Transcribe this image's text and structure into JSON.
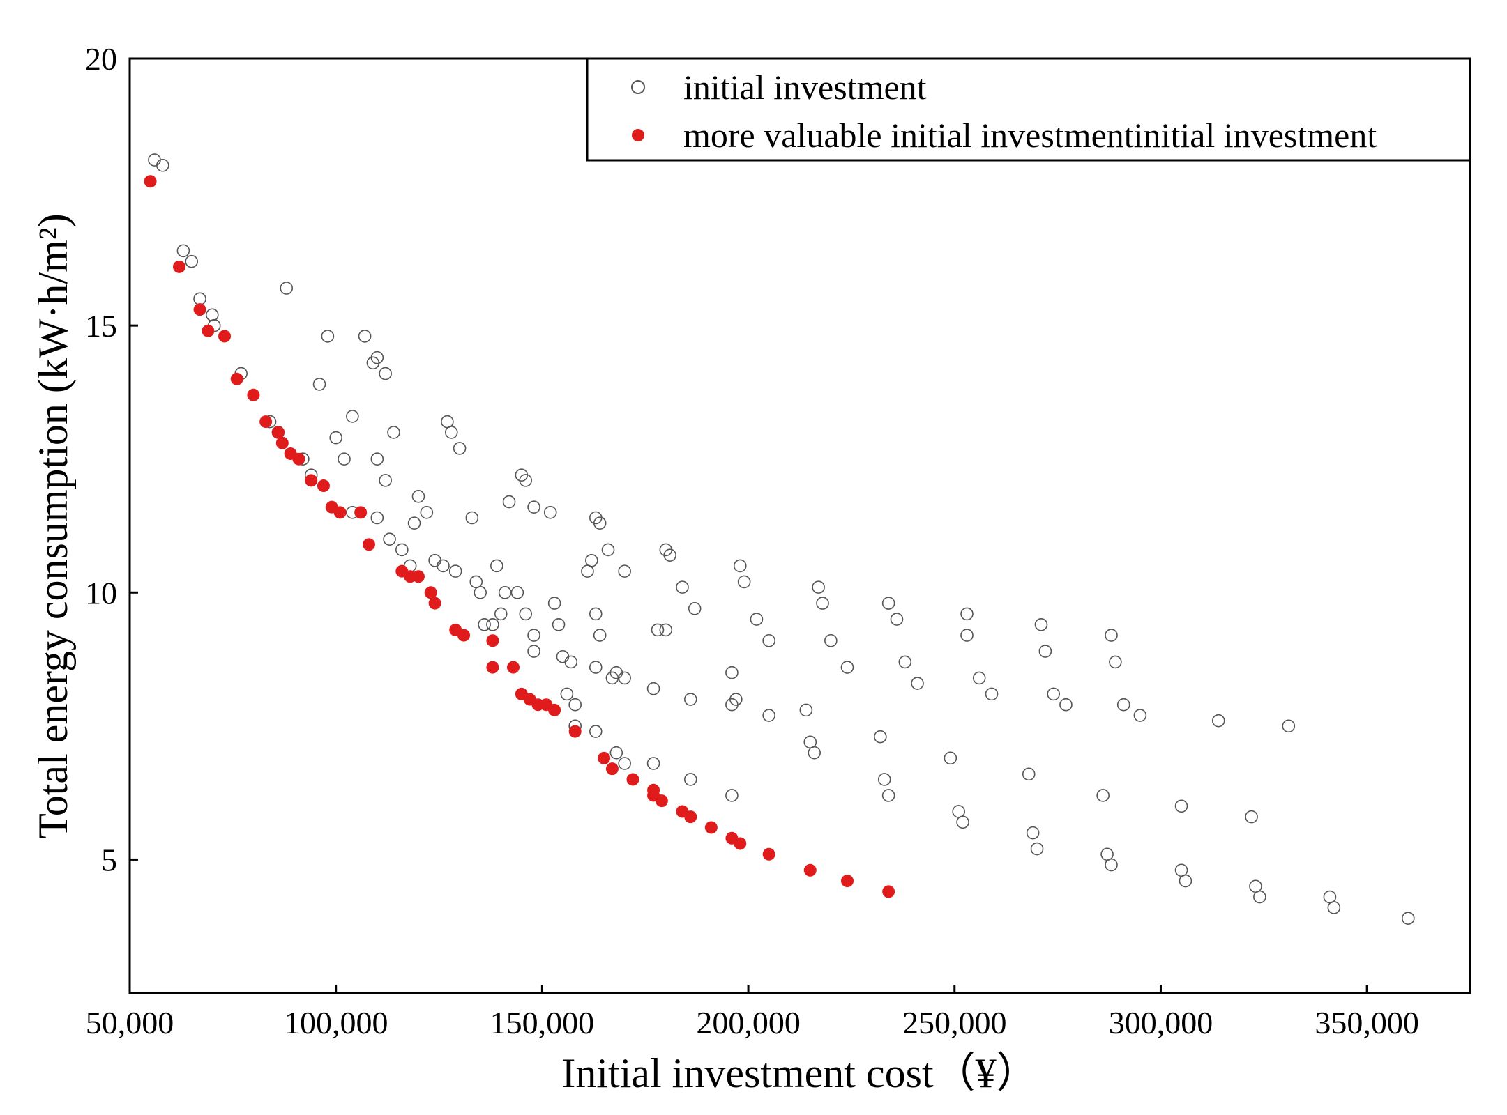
{
  "chart_data": {
    "type": "scatter",
    "title": "",
    "xlabel": "Initial investment cost（¥）",
    "ylabel": "Total energy consumption (kW·h/m²)",
    "xlim": [
      50000,
      375000
    ],
    "ylim": [
      2.5,
      20
    ],
    "x_ticks": [
      50000,
      100000,
      150000,
      200000,
      250000,
      300000,
      350000
    ],
    "x_tick_labels": [
      "50,000",
      "100,000",
      "150,000",
      "200,000",
      "250,000",
      "300,000",
      "350,000"
    ],
    "y_ticks": [
      5,
      10,
      15,
      20
    ],
    "y_tick_labels": [
      "5",
      "10",
      "15",
      "20"
    ],
    "legend_position": "top-right",
    "series": [
      {
        "name": "initial investment",
        "marker": "open-circle",
        "color": "#555555",
        "points": [
          [
            56000,
            18.1
          ],
          [
            58000,
            18.0
          ],
          [
            63000,
            16.4
          ],
          [
            65000,
            16.2
          ],
          [
            67000,
            15.5
          ],
          [
            70000,
            15.2
          ],
          [
            70500,
            15.0
          ],
          [
            77000,
            14.1
          ],
          [
            84000,
            13.2
          ],
          [
            86000,
            13.0
          ],
          [
            88000,
            15.7
          ],
          [
            92000,
            12.5
          ],
          [
            94000,
            12.2
          ],
          [
            96000,
            13.9
          ],
          [
            98000,
            14.8
          ],
          [
            100000,
            12.9
          ],
          [
            102000,
            12.5
          ],
          [
            104000,
            13.3
          ],
          [
            104000,
            11.5
          ],
          [
            107000,
            14.8
          ],
          [
            109000,
            14.3
          ],
          [
            110000,
            14.4
          ],
          [
            110000,
            12.5
          ],
          [
            112000,
            14.1
          ],
          [
            112000,
            12.1
          ],
          [
            110000,
            11.4
          ],
          [
            113000,
            11.0
          ],
          [
            114000,
            13.0
          ],
          [
            116000,
            10.8
          ],
          [
            118000,
            10.5
          ],
          [
            119000,
            11.3
          ],
          [
            120000,
            11.8
          ],
          [
            122000,
            11.5
          ],
          [
            124000,
            10.6
          ],
          [
            126000,
            10.5
          ],
          [
            127000,
            13.2
          ],
          [
            128000,
            13.0
          ],
          [
            129000,
            10.4
          ],
          [
            130000,
            12.7
          ],
          [
            133000,
            11.4
          ],
          [
            134000,
            10.2
          ],
          [
            135000,
            10.0
          ],
          [
            136000,
            9.4
          ],
          [
            138000,
            9.4
          ],
          [
            139000,
            10.5
          ],
          [
            140000,
            9.6
          ],
          [
            141000,
            10.0
          ],
          [
            142000,
            11.7
          ],
          [
            144000,
            10.0
          ],
          [
            145000,
            12.2
          ],
          [
            146000,
            12.1
          ],
          [
            146000,
            9.6
          ],
          [
            148000,
            11.6
          ],
          [
            148000,
            9.2
          ],
          [
            148000,
            8.9
          ],
          [
            152000,
            11.5
          ],
          [
            153000,
            9.8
          ],
          [
            154000,
            9.4
          ],
          [
            155000,
            8.8
          ],
          [
            156000,
            8.1
          ],
          [
            157000,
            8.7
          ],
          [
            158000,
            7.9
          ],
          [
            158000,
            7.5
          ],
          [
            161000,
            10.4
          ],
          [
            162000,
            10.6
          ],
          [
            163000,
            11.4
          ],
          [
            163000,
            9.6
          ],
          [
            164000,
            9.2
          ],
          [
            163000,
            8.6
          ],
          [
            163000,
            7.4
          ],
          [
            164000,
            11.3
          ],
          [
            166000,
            10.8
          ],
          [
            167000,
            8.4
          ],
          [
            168000,
            8.5
          ],
          [
            168000,
            7.0
          ],
          [
            170000,
            10.4
          ],
          [
            170000,
            8.4
          ],
          [
            170000,
            6.8
          ],
          [
            177000,
            8.2
          ],
          [
            177000,
            6.8
          ],
          [
            178000,
            9.3
          ],
          [
            180000,
            9.3
          ],
          [
            180000,
            10.8
          ],
          [
            181000,
            10.7
          ],
          [
            184000,
            10.1
          ],
          [
            186000,
            8.0
          ],
          [
            186000,
            6.5
          ],
          [
            187000,
            9.7
          ],
          [
            196000,
            8.5
          ],
          [
            196000,
            7.9
          ],
          [
            196000,
            6.2
          ],
          [
            197000,
            8.0
          ],
          [
            198000,
            10.5
          ],
          [
            199000,
            10.2
          ],
          [
            202000,
            9.5
          ],
          [
            205000,
            7.7
          ],
          [
            205000,
            9.1
          ],
          [
            214000,
            7.8
          ],
          [
            215000,
            7.2
          ],
          [
            216000,
            7.0
          ],
          [
            217000,
            10.1
          ],
          [
            218000,
            9.8
          ],
          [
            220000,
            9.1
          ],
          [
            224000,
            8.6
          ],
          [
            232000,
            7.3
          ],
          [
            233000,
            6.5
          ],
          [
            234000,
            6.2
          ],
          [
            234000,
            9.8
          ],
          [
            236000,
            9.5
          ],
          [
            238000,
            8.7
          ],
          [
            241000,
            8.3
          ],
          [
            249000,
            6.9
          ],
          [
            251000,
            5.9
          ],
          [
            252000,
            5.7
          ],
          [
            253000,
            9.6
          ],
          [
            253000,
            9.2
          ],
          [
            256000,
            8.4
          ],
          [
            259000,
            8.1
          ],
          [
            268000,
            6.6
          ],
          [
            269000,
            5.5
          ],
          [
            270000,
            5.2
          ],
          [
            271000,
            9.4
          ],
          [
            272000,
            8.9
          ],
          [
            274000,
            8.1
          ],
          [
            277000,
            7.9
          ],
          [
            286000,
            6.2
          ],
          [
            287000,
            5.1
          ],
          [
            288000,
            4.9
          ],
          [
            288000,
            9.2
          ],
          [
            289000,
            8.7
          ],
          [
            291000,
            7.9
          ],
          [
            295000,
            7.7
          ],
          [
            305000,
            6.0
          ],
          [
            305000,
            4.8
          ],
          [
            306000,
            4.6
          ],
          [
            314000,
            7.6
          ],
          [
            322000,
            5.8
          ],
          [
            323000,
            4.5
          ],
          [
            324000,
            4.3
          ],
          [
            331000,
            7.5
          ],
          [
            341000,
            4.3
          ],
          [
            342000,
            4.1
          ],
          [
            360000,
            3.9
          ]
        ]
      },
      {
        "name": "more valuable initial investmentinitial investment",
        "marker": "filled-circle",
        "color": "#e01b1b",
        "points": [
          [
            55000,
            17.7
          ],
          [
            62000,
            16.1
          ],
          [
            67000,
            15.3
          ],
          [
            69000,
            14.9
          ],
          [
            73000,
            14.8
          ],
          [
            76000,
            14.0
          ],
          [
            80000,
            13.7
          ],
          [
            83000,
            13.2
          ],
          [
            86000,
            13.0
          ],
          [
            87000,
            12.8
          ],
          [
            89000,
            12.6
          ],
          [
            91000,
            12.5
          ],
          [
            94000,
            12.1
          ],
          [
            97000,
            12.0
          ],
          [
            99000,
            11.6
          ],
          [
            101000,
            11.5
          ],
          [
            106000,
            11.5
          ],
          [
            108000,
            10.9
          ],
          [
            116000,
            10.4
          ],
          [
            118000,
            10.3
          ],
          [
            120000,
            10.3
          ],
          [
            123000,
            10.0
          ],
          [
            124000,
            9.8
          ],
          [
            129000,
            9.3
          ],
          [
            131000,
            9.2
          ],
          [
            138000,
            9.1
          ],
          [
            138000,
            8.6
          ],
          [
            143000,
            8.6
          ],
          [
            145000,
            8.1
          ],
          [
            147000,
            8.0
          ],
          [
            149000,
            7.9
          ],
          [
            151000,
            7.9
          ],
          [
            153000,
            7.8
          ],
          [
            158000,
            7.4
          ],
          [
            165000,
            6.9
          ],
          [
            167000,
            6.7
          ],
          [
            172000,
            6.5
          ],
          [
            177000,
            6.3
          ],
          [
            177000,
            6.2
          ],
          [
            179000,
            6.1
          ],
          [
            184000,
            5.9
          ],
          [
            186000,
            5.8
          ],
          [
            191000,
            5.6
          ],
          [
            196000,
            5.4
          ],
          [
            198000,
            5.3
          ],
          [
            205000,
            5.1
          ],
          [
            215000,
            4.8
          ],
          [
            224000,
            4.6
          ],
          [
            234000,
            4.4
          ]
        ]
      }
    ]
  }
}
